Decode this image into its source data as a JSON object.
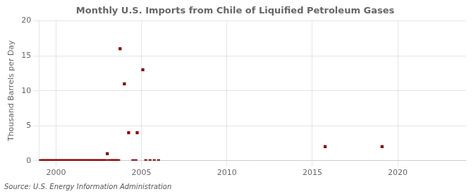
{
  "chart_data": {
    "type": "scatter",
    "title": "Monthly U.S. Imports from Chile of Liquified Petroleum Gases",
    "ylabel": "Thousand Barrels per Day",
    "source": "Source: U.S. Energy Information Administration",
    "color": "#8b0000",
    "marker": "square",
    "grid": true,
    "xlim": [
      1999,
      2024
    ],
    "ylim": [
      0,
      20
    ],
    "xticks": [
      2000,
      2005,
      2010,
      2015,
      2020
    ],
    "yticks": [
      0,
      5,
      10,
      15,
      20
    ],
    "x": [
      1999.08,
      1999.17,
      1999.25,
      1999.33,
      1999.42,
      1999.5,
      1999.58,
      1999.67,
      1999.75,
      1999.83,
      1999.92,
      2000.0,
      2000.08,
      2000.17,
      2000.25,
      2000.33,
      2000.42,
      2000.5,
      2000.58,
      2000.67,
      2000.75,
      2000.83,
      2000.92,
      2001.0,
      2001.08,
      2001.17,
      2001.25,
      2001.33,
      2001.42,
      2001.5,
      2001.58,
      2001.67,
      2001.75,
      2001.83,
      2001.92,
      2002.0,
      2002.08,
      2002.17,
      2002.25,
      2002.33,
      2002.42,
      2002.5,
      2002.58,
      2002.67,
      2002.75,
      2002.83,
      2002.92,
      2003.0,
      2003.08,
      2003.17,
      2003.25,
      2003.33,
      2003.42,
      2003.5,
      2003.58,
      2003.67,
      2003.75,
      2004.0,
      2004.25,
      2004.5,
      2004.67,
      2004.75,
      2005.08,
      2005.25,
      2005.5,
      2005.75,
      2006.0,
      2015.75,
      2019.08
    ],
    "values": [
      0,
      0,
      0,
      0,
      0,
      0,
      0,
      0,
      0,
      0,
      0,
      0,
      0,
      0,
      0,
      0,
      0,
      0,
      0,
      0,
      0,
      0,
      0,
      0,
      0,
      0,
      0,
      0,
      0,
      0,
      0,
      0,
      0,
      0,
      0,
      0,
      0,
      0,
      0,
      0,
      0,
      0,
      0,
      0,
      0,
      0,
      0,
      1,
      0,
      0,
      0,
      0,
      0,
      0,
      0,
      0,
      16,
      11,
      4,
      0,
      0,
      4,
      13,
      0,
      0,
      0,
      0,
      2,
      2
    ]
  }
}
